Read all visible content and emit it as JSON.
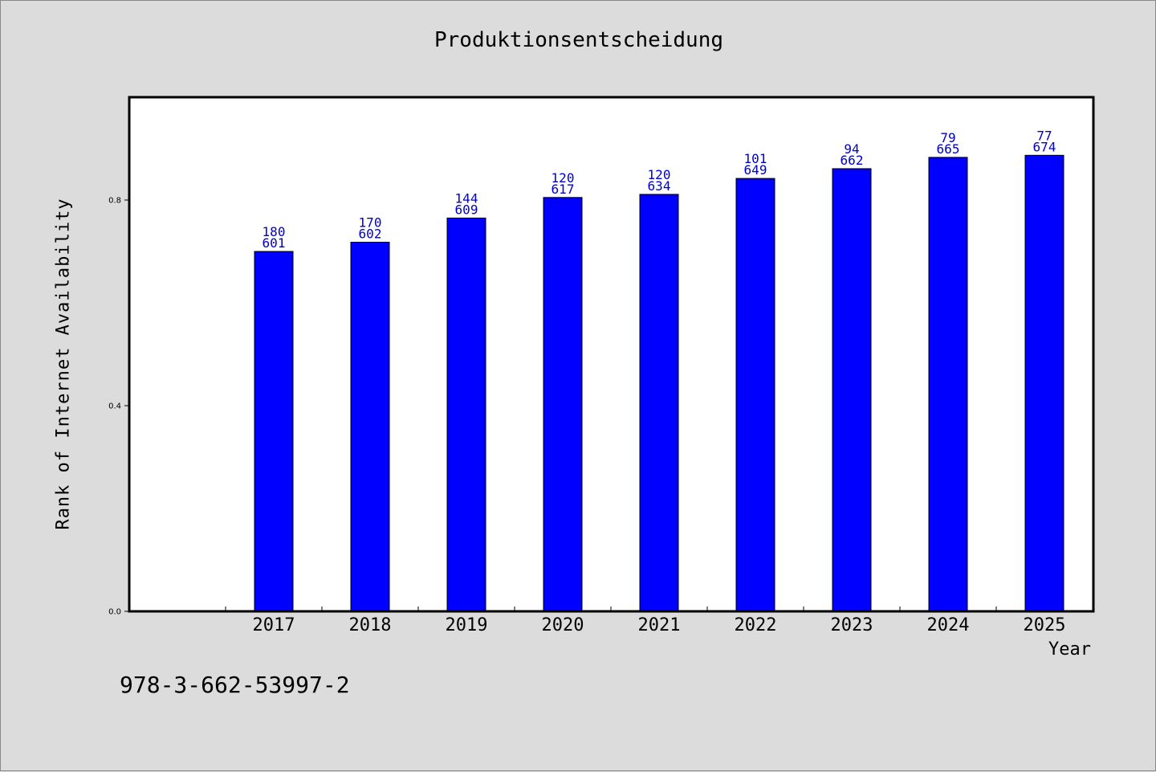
{
  "chart_data": {
    "type": "bar",
    "title": "Produktionsentscheidung",
    "xlabel": "Year",
    "ylabel": "Rank of Internet Availability",
    "ylim": [
      0,
      1.0
    ],
    "yticks": [
      "0.0",
      "0.4",
      "0.8"
    ],
    "grid": false,
    "categories": [
      "2017",
      "2018",
      "2019",
      "2020",
      "2021",
      "2022",
      "2023",
      "2024",
      "2025"
    ],
    "values": [
      0.7,
      0.718,
      0.765,
      0.805,
      0.811,
      0.842,
      0.861,
      0.883,
      0.887
    ],
    "bar_labels": [
      [
        "180",
        "601"
      ],
      [
        "170",
        "602"
      ],
      [
        "144",
        "609"
      ],
      [
        "120",
        "617"
      ],
      [
        "120",
        "634"
      ],
      [
        "101",
        "649"
      ],
      [
        "94",
        "662"
      ],
      [
        "79",
        "665"
      ],
      [
        "77",
        "674"
      ]
    ],
    "bar_color": "#0000ff",
    "label_color": "#0000cc"
  },
  "footer": {
    "isbn": "978-3-662-53997-2"
  }
}
